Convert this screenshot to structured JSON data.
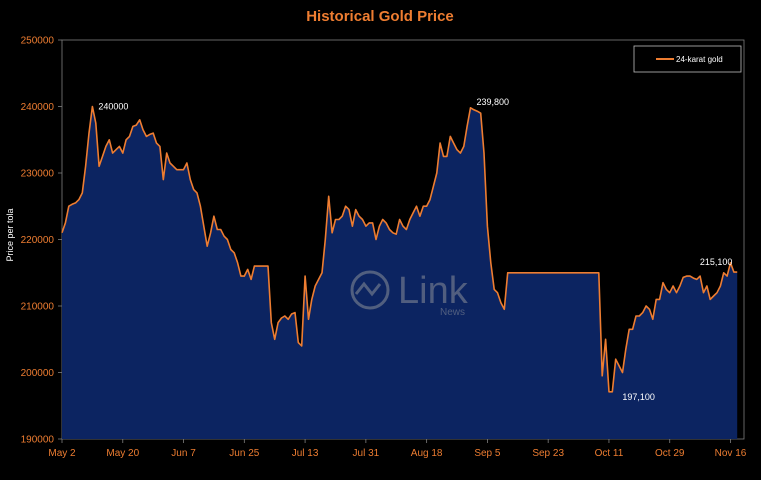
{
  "chart_data": {
    "type": "area",
    "title": "Historical Gold Price",
    "xlabel": "",
    "ylabel": "Price per tola",
    "ylim": [
      190000,
      250000
    ],
    "yticks": [
      "190000",
      "200000",
      "210000",
      "220000",
      "230000",
      "240000",
      "250000"
    ],
    "xticks": [
      "May 2",
      "May 20",
      "Jun 7",
      "Jun 25",
      "Jul 13",
      "Jul 31",
      "Aug 18",
      "Sep 5",
      "Sep 23",
      "Oct 11",
      "Oct 29",
      "Nov 16"
    ],
    "x_range": [
      "May 2",
      "Nov 20"
    ],
    "grid": false,
    "legend_position": "top-right",
    "series": [
      {
        "name": "24-karat gold",
        "color": "#ee7d31",
        "fill": "#0c2461",
        "points": [
          [
            "May 2",
            221000
          ],
          [
            "May 3",
            222500
          ],
          [
            "May 4",
            225000
          ],
          [
            "May 5",
            225300
          ],
          [
            "May 6",
            225500
          ],
          [
            "May 7",
            226000
          ],
          [
            "May 8",
            227000
          ],
          [
            "May 9",
            231000
          ],
          [
            "May 10",
            236000
          ],
          [
            "May 11",
            240000
          ],
          [
            "May 12",
            237500
          ],
          [
            "May 13",
            231000
          ],
          [
            "May 14",
            232500
          ],
          [
            "May 15",
            234000
          ],
          [
            "May 16",
            235000
          ],
          [
            "May 17",
            233000
          ],
          [
            "May 18",
            233500
          ],
          [
            "May 19",
            234000
          ],
          [
            "May 20",
            233000
          ],
          [
            "May 21",
            235000
          ],
          [
            "May 22",
            235500
          ],
          [
            "May 23",
            237000
          ],
          [
            "May 24",
            237200
          ],
          [
            "May 25",
            238000
          ],
          [
            "May 26",
            236500
          ],
          [
            "May 27",
            235500
          ],
          [
            "May 28",
            235800
          ],
          [
            "May 29",
            236000
          ],
          [
            "May 30",
            234500
          ],
          [
            "May 31",
            234000
          ],
          [
            "Jun 1",
            229000
          ],
          [
            "Jun 2",
            233000
          ],
          [
            "Jun 3",
            231500
          ],
          [
            "Jun 4",
            231000
          ],
          [
            "Jun 5",
            230500
          ],
          [
            "Jun 6",
            230500
          ],
          [
            "Jun 7",
            230500
          ],
          [
            "Jun 8",
            231500
          ],
          [
            "Jun 9",
            229000
          ],
          [
            "Jun 10",
            227500
          ],
          [
            "Jun 11",
            227000
          ],
          [
            "Jun 12",
            225000
          ],
          [
            "Jun 13",
            222000
          ],
          [
            "Jun 14",
            219000
          ],
          [
            "Jun 15",
            221000
          ],
          [
            "Jun 16",
            223500
          ],
          [
            "Jun 17",
            221500
          ],
          [
            "Jun 18",
            221500
          ],
          [
            "Jun 19",
            220500
          ],
          [
            "Jun 20",
            220000
          ],
          [
            "Jun 21",
            218500
          ],
          [
            "Jun 22",
            218000
          ],
          [
            "Jun 23",
            216500
          ],
          [
            "Jun 24",
            214500
          ],
          [
            "Jun 25",
            214500
          ],
          [
            "Jun 26",
            215500
          ],
          [
            "Jun 27",
            214000
          ],
          [
            "Jun 28",
            216000
          ],
          [
            "Jun 29",
            216000
          ],
          [
            "Jun 30",
            216000
          ],
          [
            "Jul 1",
            216000
          ],
          [
            "Jul 2",
            216000
          ],
          [
            "Jul 3",
            207500
          ],
          [
            "Jul 4",
            205000
          ],
          [
            "Jul 5",
            207500
          ],
          [
            "Jul 6",
            208200
          ],
          [
            "Jul 7",
            208500
          ],
          [
            "Jul 8",
            208000
          ],
          [
            "Jul 9",
            208800
          ],
          [
            "Jul 10",
            209000
          ],
          [
            "Jul 11",
            204500
          ],
          [
            "Jul 12",
            204000
          ],
          [
            "Jul 13",
            214500
          ],
          [
            "Jul 14",
            208000
          ],
          [
            "Jul 15",
            211000
          ],
          [
            "Jul 16",
            213000
          ],
          [
            "Jul 17",
            214000
          ],
          [
            "Jul 18",
            215000
          ],
          [
            "Jul 19",
            220000
          ],
          [
            "Jul 20",
            226500
          ],
          [
            "Jul 21",
            221000
          ],
          [
            "Jul 22",
            223000
          ],
          [
            "Jul 23",
            223000
          ],
          [
            "Jul 24",
            223500
          ],
          [
            "Jul 25",
            225000
          ],
          [
            "Jul 26",
            224500
          ],
          [
            "Jul 27",
            222000
          ],
          [
            "Jul 28",
            224500
          ],
          [
            "Jul 29",
            223500
          ],
          [
            "Jul 30",
            223000
          ],
          [
            "Jul 31",
            222000
          ],
          [
            "Aug 1",
            222500
          ],
          [
            "Aug 2",
            222500
          ],
          [
            "Aug 3",
            220000
          ],
          [
            "Aug 4",
            222000
          ],
          [
            "Aug 5",
            223000
          ],
          [
            "Aug 6",
            222500
          ],
          [
            "Aug 7",
            221500
          ],
          [
            "Aug 8",
            221000
          ],
          [
            "Aug 9",
            220800
          ],
          [
            "Aug 10",
            223000
          ],
          [
            "Aug 11",
            222000
          ],
          [
            "Aug 12",
            221500
          ],
          [
            "Aug 13",
            223000
          ],
          [
            "Aug 14",
            224000
          ],
          [
            "Aug 15",
            225000
          ],
          [
            "Aug 16",
            223500
          ],
          [
            "Aug 17",
            225000
          ],
          [
            "Aug 18",
            225000
          ],
          [
            "Aug 19",
            226000
          ],
          [
            "Aug 20",
            228000
          ],
          [
            "Aug 21",
            230000
          ],
          [
            "Aug 22",
            234500
          ],
          [
            "Aug 23",
            232500
          ],
          [
            "Aug 24",
            232500
          ],
          [
            "Aug 25",
            235500
          ],
          [
            "Aug 26",
            234500
          ],
          [
            "Aug 27",
            233500
          ],
          [
            "Aug 28",
            233000
          ],
          [
            "Aug 29",
            234000
          ],
          [
            "Aug 30",
            237000
          ],
          [
            "Aug 31",
            239800
          ],
          [
            "Sep 1",
            239500
          ],
          [
            "Sep 2",
            239300
          ],
          [
            "Sep 3",
            239000
          ],
          [
            "Sep 4",
            233000
          ],
          [
            "Sep 5",
            222000
          ],
          [
            "Sep 6",
            216500
          ],
          [
            "Sep 7",
            212500
          ],
          [
            "Sep 8",
            212000
          ],
          [
            "Sep 9",
            210500
          ],
          [
            "Sep 10",
            209500
          ],
          [
            "Sep 11",
            215000
          ],
          [
            "Sep 12",
            215000
          ],
          [
            "Sep 13",
            215000
          ],
          [
            "Sep 20",
            215000
          ],
          [
            "Sep 27",
            215000
          ],
          [
            "Oct 4",
            215000
          ],
          [
            "Oct 6",
            215000
          ],
          [
            "Oct 7",
            215000
          ],
          [
            "Oct 8",
            215000
          ],
          [
            "Oct 9",
            199500
          ],
          [
            "Oct 10",
            205000
          ],
          [
            "Oct 11",
            197100
          ],
          [
            "Oct 12",
            197100
          ],
          [
            "Oct 13",
            202000
          ],
          [
            "Oct 14",
            201000
          ],
          [
            "Oct 15",
            200000
          ],
          [
            "Oct 16",
            203500
          ],
          [
            "Oct 17",
            206500
          ],
          [
            "Oct 18",
            206500
          ],
          [
            "Oct 19",
            208500
          ],
          [
            "Oct 20",
            208500
          ],
          [
            "Oct 21",
            209000
          ],
          [
            "Oct 22",
            210000
          ],
          [
            "Oct 23",
            209500
          ],
          [
            "Oct 24",
            208000
          ],
          [
            "Oct 25",
            211000
          ],
          [
            "Oct 26",
            211000
          ],
          [
            "Oct 27",
            213500
          ],
          [
            "Oct 28",
            212500
          ],
          [
            "Oct 29",
            212000
          ],
          [
            "Oct 30",
            213000
          ],
          [
            "Oct 31",
            212000
          ],
          [
            "Nov 1",
            213000
          ],
          [
            "Nov 2",
            214300
          ],
          [
            "Nov 3",
            214500
          ],
          [
            "Nov 4",
            214500
          ],
          [
            "Nov 5",
            214200
          ],
          [
            "Nov 6",
            214000
          ],
          [
            "Nov 7",
            214500
          ],
          [
            "Nov 8",
            212000
          ],
          [
            "Nov 9",
            213000
          ],
          [
            "Nov 10",
            211000
          ],
          [
            "Nov 11",
            211500
          ],
          [
            "Nov 12",
            212000
          ],
          [
            "Nov 13",
            213000
          ],
          [
            "Nov 14",
            215000
          ],
          [
            "Nov 15",
            214500
          ],
          [
            "Nov 16",
            216500
          ],
          [
            "Nov 17",
            215100
          ],
          [
            "Nov 18",
            215100
          ]
        ]
      }
    ],
    "annotations": [
      {
        "text": "240000",
        "x": "May 11",
        "y": 240000
      },
      {
        "text": "239,800",
        "x": "Aug 31",
        "y": 239800
      },
      {
        "text": "197,100",
        "x": "Oct 12",
        "y": 197100
      },
      {
        "text": "215,100",
        "x": "Nov 17",
        "y": 215100
      }
    ]
  },
  "watermark": {
    "name": "Link",
    "sub": "News"
  },
  "colors": {
    "background": "#000000",
    "plot_area": "#000000",
    "accent": "#ee7d31",
    "area_fill": "#0c2461"
  }
}
